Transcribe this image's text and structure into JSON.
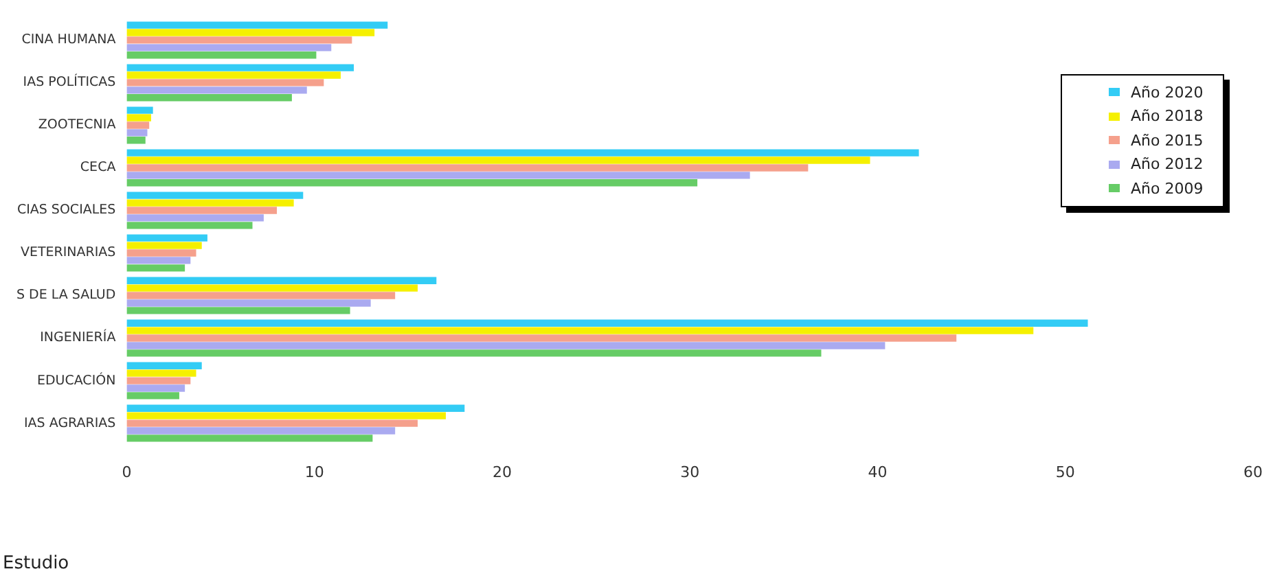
{
  "chart_data": {
    "type": "bar",
    "orientation": "horizontal",
    "categories": [
      "CINA HUMANA",
      "IAS POLÍTICAS",
      "ZOOTECNIA",
      "CECA",
      "CIAS SOCIALES",
      "VETERINARIAS",
      "S DE LA SALUD",
      "INGENIERÍA",
      "EDUCACIÓN",
      "IAS AGRARIAS"
    ],
    "series": [
      {
        "name": "Año 2020",
        "color": "#33ccf5",
        "values": [
          13.9,
          12.1,
          1.4,
          42.2,
          9.4,
          4.3,
          16.5,
          51.2,
          4.0,
          18.0
        ]
      },
      {
        "name": "Año 2018",
        "color": "#f5f000",
        "values": [
          13.2,
          11.4,
          1.3,
          39.6,
          8.9,
          4.0,
          15.5,
          48.3,
          3.7,
          17.0
        ]
      },
      {
        "name": "Año 2015",
        "color": "#f5a08c",
        "values": [
          12.0,
          10.5,
          1.2,
          36.3,
          8.0,
          3.7,
          14.3,
          44.2,
          3.4,
          15.5
        ]
      },
      {
        "name": "Año 2012",
        "color": "#aaaaf0",
        "values": [
          10.9,
          9.6,
          1.1,
          33.2,
          7.3,
          3.4,
          13.0,
          40.4,
          3.1,
          14.3
        ]
      },
      {
        "name": "Año 2009",
        "color": "#66cc66",
        "values": [
          10.1,
          8.8,
          1.0,
          30.4,
          6.7,
          3.1,
          11.9,
          37.0,
          2.8,
          13.1
        ]
      }
    ],
    "xlim": [
      0,
      60
    ],
    "xticks": [
      0,
      10,
      20,
      30,
      40,
      50,
      60
    ],
    "grid": false,
    "legend": "top right",
    "annotations": [
      "Estudio"
    ]
  }
}
